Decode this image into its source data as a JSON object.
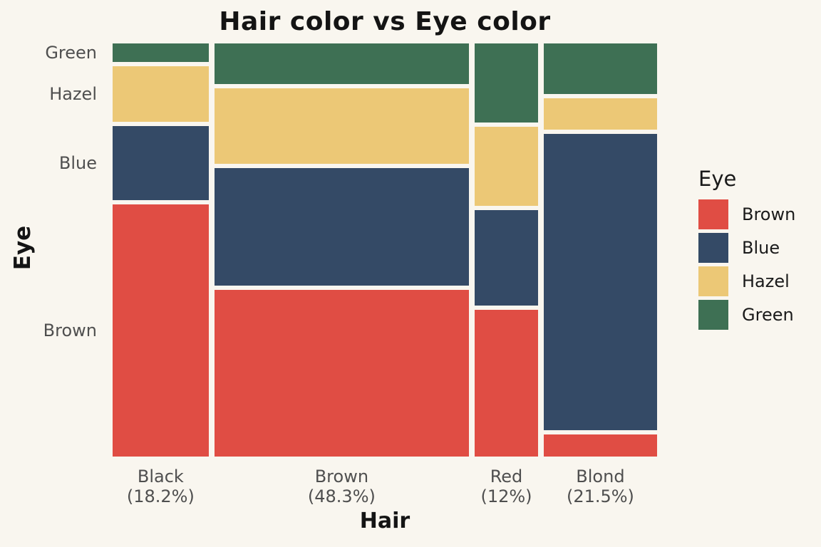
{
  "title": "Hair color vs Eye color",
  "x_axis": {
    "title": "Hair"
  },
  "y_axis": {
    "title": "Eye"
  },
  "legend": {
    "title": "Eye",
    "entries": [
      {
        "label": "Brown",
        "color": "#E04D44"
      },
      {
        "label": "Blue",
        "color": "#344A66"
      },
      {
        "label": "Hazel",
        "color": "#ECC876"
      },
      {
        "label": "Green",
        "color": "#3E7054"
      }
    ]
  },
  "colors": {
    "background": "#F9F6EF",
    "tick_text": "#4F4F4F",
    "title_text": "#141414"
  },
  "chart_data": {
    "type": "mosaic",
    "title": "Hair color vs Eye color",
    "xlabel": "Hair",
    "ylabel": "Eye",
    "legend_position": "right",
    "y_categories_top_to_bottom": [
      "Green",
      "Hazel",
      "Blue",
      "Brown"
    ],
    "y_tick_labels": [
      "Green",
      "Hazel",
      "Blue",
      "Brown"
    ],
    "segment_colors": {
      "Brown": "#E04D44",
      "Blue": "#344A66",
      "Hazel": "#ECC876",
      "Green": "#3E7054"
    },
    "x_categories": [
      {
        "label": "Black",
        "percent_label": "(18.2%)",
        "width_share": 0.182,
        "eye_proportions": {
          "Green": 0.046,
          "Hazel": 0.139,
          "Blue": 0.185,
          "Brown": 0.63
        }
      },
      {
        "label": "Brown",
        "percent_label": "(48.3%)",
        "width_share": 0.483,
        "eye_proportions": {
          "Green": 0.101,
          "Hazel": 0.189,
          "Blue": 0.294,
          "Brown": 0.416
        }
      },
      {
        "label": "Red",
        "percent_label": "(12%)",
        "width_share": 0.12,
        "eye_proportions": {
          "Green": 0.197,
          "Hazel": 0.197,
          "Blue": 0.239,
          "Brown": 0.366
        }
      },
      {
        "label": "Blond",
        "percent_label": "(21.5%)",
        "width_share": 0.215,
        "eye_proportions": {
          "Green": 0.126,
          "Hazel": 0.079,
          "Blue": 0.74,
          "Brown": 0.055
        }
      }
    ]
  }
}
